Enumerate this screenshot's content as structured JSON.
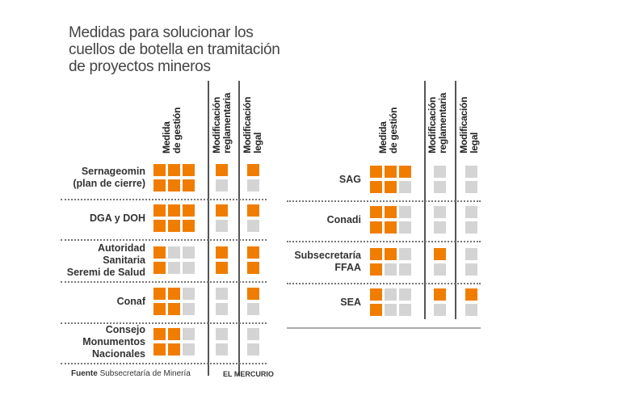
{
  "title_lines": [
    "Medidas para solucionar los",
    "cuellos de botella en tramitación",
    "de proyectos mineros"
  ],
  "columns": {
    "gestion": [
      "Medida",
      "de gestión"
    ],
    "reglamentaria": [
      "Modificación",
      "reglamentaria"
    ],
    "legal": [
      "Modificación",
      "legal"
    ]
  },
  "colors": {
    "filled": "#f07d00",
    "empty": "#d4d4d4"
  },
  "chart_data": {
    "type": "table",
    "title": "Medidas para solucionar los cuellos de botella en tramitación de proyectos mineros",
    "columns": [
      "Medida de gestión",
      "Modificación reglamentaria",
      "Modificación legal"
    ],
    "max_squares": [
      6,
      2,
      2
    ],
    "panels": [
      {
        "rows": [
          {
            "label": [
              "Sernageomin",
              "(plan de cierre)"
            ],
            "values": [
              6,
              1,
              1
            ]
          },
          {
            "label": [
              "DGA y DOH"
            ],
            "values": [
              6,
              1,
              1
            ]
          },
          {
            "label": [
              "Autoridad",
              "Sanitaria",
              "Seremi de Salud"
            ],
            "values": [
              2,
              2,
              2
            ]
          },
          {
            "label": [
              "Conaf"
            ],
            "values": [
              4,
              0,
              1
            ]
          },
          {
            "label": [
              "Consejo",
              "Monumentos",
              "Nacionales"
            ],
            "values": [
              4,
              0,
              0
            ]
          }
        ]
      },
      {
        "rows": [
          {
            "label": [
              "SAG"
            ],
            "values": [
              5,
              0,
              0
            ]
          },
          {
            "label": [
              "Conadi"
            ],
            "values": [
              4,
              0,
              0
            ]
          },
          {
            "label": [
              "Subsecretaría",
              "FFAA"
            ],
            "values": [
              3,
              1,
              0
            ]
          },
          {
            "label": [
              "SEA"
            ],
            "values": [
              2,
              1,
              1
            ]
          }
        ]
      }
    ]
  },
  "footer": {
    "source_label": "Fuente",
    "source": "Subsecretaría de Minería",
    "credit": "EL MERCURIO"
  }
}
